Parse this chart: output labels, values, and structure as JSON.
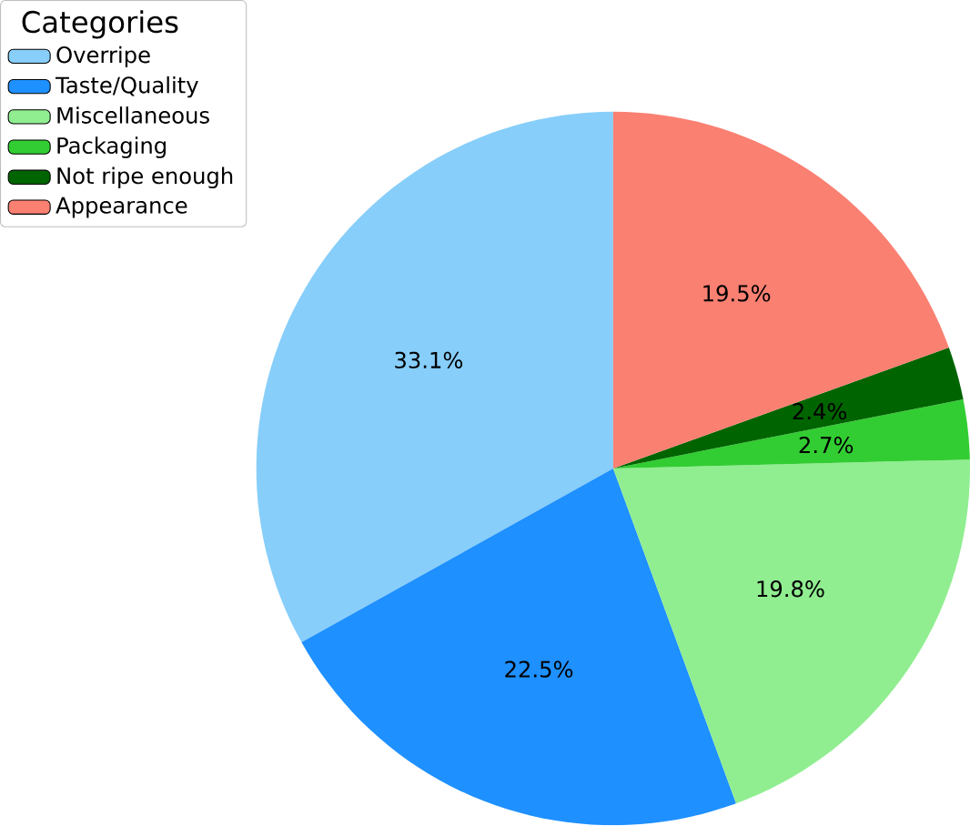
{
  "chart_data": {
    "type": "pie",
    "categories": [
      "Overripe",
      "Taste/Quality",
      "Miscellaneous",
      "Packaging",
      "Not ripe enough",
      "Appearance"
    ],
    "values": [
      33.1,
      22.5,
      19.8,
      2.7,
      2.4,
      19.5
    ],
    "value_labels": [
      "33.1%",
      "22.5%",
      "19.8%",
      "2.7%",
      "2.4%",
      "19.5%"
    ],
    "colors": [
      "#87cefa",
      "#1e90ff",
      "#90ee90",
      "#32cd32",
      "#006400",
      "#fa8072"
    ],
    "legend_title": "Categories",
    "legend": "top left"
  }
}
